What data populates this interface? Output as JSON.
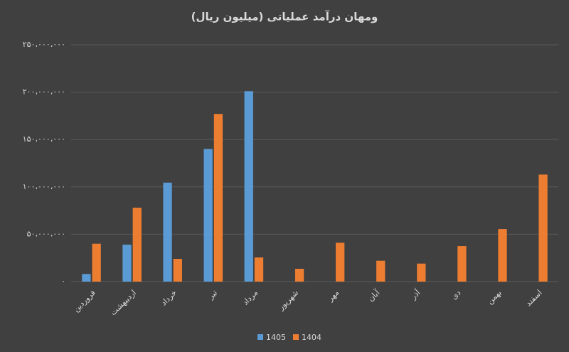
{
  "chart_data": {
    "type": "bar",
    "title": "ومهان درآمد عملیاتی (میلیون ریال)",
    "categories": [
      "فروردین",
      "اردیبهشت",
      "خرداد",
      "تیر",
      "مرداد",
      "شهریور",
      "مهر",
      "آبان",
      "آذر",
      "دی",
      "بهمن",
      "اسفند"
    ],
    "series": [
      {
        "name": "1405",
        "color": "#5b9bd5",
        "values": [
          8000000,
          39000000,
          104500000,
          140000000,
          201000000,
          null,
          null,
          null,
          null,
          null,
          null,
          null
        ]
      },
      {
        "name": "1404",
        "color": "#ed7d31",
        "values": [
          40000000,
          78000000,
          24000000,
          177000000,
          25500000,
          13500000,
          41000000,
          22000000,
          19000000,
          37500000,
          55500000,
          113000000
        ]
      }
    ],
    "ylim": [
      0,
      250000000
    ],
    "yticks": [
      {
        "value": 0,
        "label": "۰"
      },
      {
        "value": 50000000,
        "label": "۵۰،۰۰۰،۰۰۰"
      },
      {
        "value": 100000000,
        "label": "۱۰۰،۰۰۰،۰۰۰"
      },
      {
        "value": 150000000,
        "label": "۱۵۰،۰۰۰،۰۰۰"
      },
      {
        "value": 200000000,
        "label": "۲۰۰،۰۰۰،۰۰۰"
      },
      {
        "value": 250000000,
        "label": "۲۵۰،۰۰۰،۰۰۰"
      }
    ],
    "grid": true
  }
}
